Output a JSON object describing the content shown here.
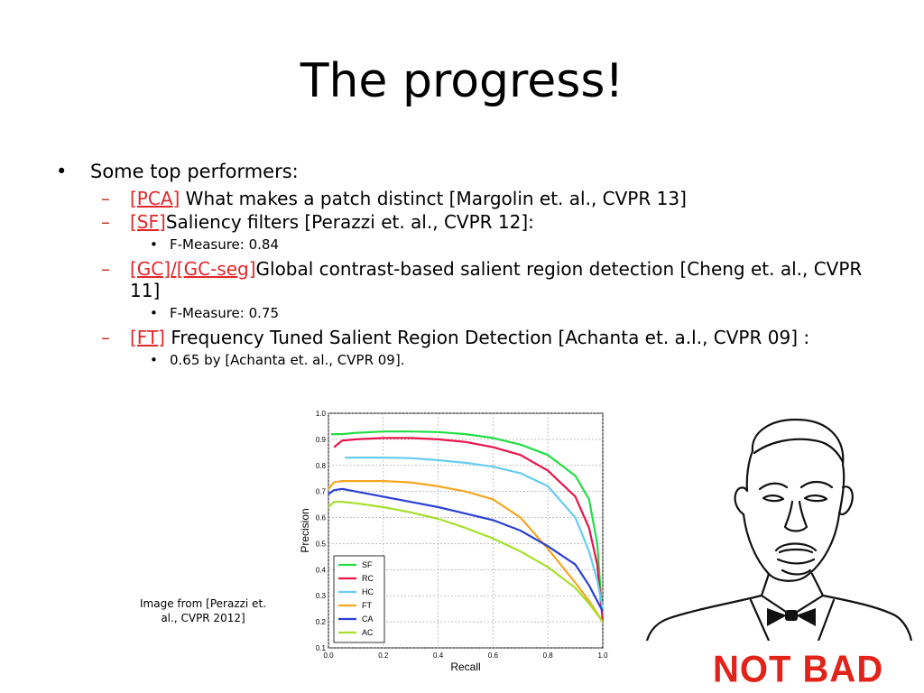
{
  "slide": {
    "title": "The progress!",
    "bullets": {
      "top": "Some top performers:",
      "items": [
        {
          "tag": "[PCA]",
          "text": " What makes a patch distinct [Margolin et. al., CVPR 13]"
        },
        {
          "tag": "[SF]",
          "text": "Saliency filters [Perazzi et. al., CVPR 12]:",
          "sub": "F-Measure: 0.84"
        },
        {
          "tag": "[GC]/[GC-seg]",
          "text": "Global contrast-based salient region detection [Cheng et. al., CVPR 11]",
          "sub": "F-Measure: 0.75"
        },
        {
          "tag": "[FT]",
          "text": " Frequency Tuned Salient Region Detection [Achanta et. a.l., CVPR 09] :",
          "sub": "0.65 by [Achanta et. al., CVPR 09]."
        }
      ]
    },
    "caption": "Image from [Perazzi et. al., CVPR 2012]",
    "meme_text": "NOT BAD"
  },
  "chart_data": {
    "type": "line",
    "xlabel": "Recall",
    "ylabel": "Precision",
    "xlim": [
      0.0,
      1.0
    ],
    "ylim": [
      0.1,
      1.0
    ],
    "xticks": [
      "0.0",
      "0.2",
      "0.4",
      "0.6",
      "0.8",
      "1.0"
    ],
    "yticks": [
      "0.1",
      "0.2",
      "0.3",
      "0.4",
      "0.5",
      "0.6",
      "0.7",
      "0.8",
      "0.9",
      "1.0"
    ],
    "grid": true,
    "legend_position": "lower-left",
    "series": [
      {
        "name": "SF",
        "color": "#22dd44",
        "x": [
          0.01,
          0.05,
          0.1,
          0.2,
          0.3,
          0.4,
          0.5,
          0.6,
          0.7,
          0.8,
          0.9,
          0.95,
          0.98,
          1.0
        ],
        "y": [
          0.92,
          0.92,
          0.925,
          0.93,
          0.93,
          0.928,
          0.92,
          0.905,
          0.88,
          0.84,
          0.76,
          0.67,
          0.5,
          0.2
        ]
      },
      {
        "name": "RC",
        "color": "#e8144c",
        "x": [
          0.02,
          0.05,
          0.1,
          0.2,
          0.3,
          0.4,
          0.5,
          0.6,
          0.7,
          0.8,
          0.9,
          0.95,
          0.98,
          1.0
        ],
        "y": [
          0.87,
          0.895,
          0.9,
          0.905,
          0.905,
          0.9,
          0.89,
          0.87,
          0.84,
          0.78,
          0.68,
          0.56,
          0.42,
          0.2
        ]
      },
      {
        "name": "HC",
        "color": "#66ccf0",
        "x": [
          0.06,
          0.1,
          0.2,
          0.3,
          0.4,
          0.5,
          0.6,
          0.7,
          0.8,
          0.9,
          0.95,
          0.98,
          1.0
        ],
        "y": [
          0.83,
          0.83,
          0.83,
          0.828,
          0.82,
          0.81,
          0.795,
          0.77,
          0.72,
          0.6,
          0.47,
          0.36,
          0.25
        ]
      },
      {
        "name": "FT",
        "color": "#f5a623",
        "x": [
          0.0,
          0.02,
          0.05,
          0.1,
          0.2,
          0.3,
          0.4,
          0.5,
          0.6,
          0.7,
          0.8,
          0.9,
          0.95,
          1.0
        ],
        "y": [
          0.71,
          0.735,
          0.74,
          0.74,
          0.74,
          0.735,
          0.72,
          0.7,
          0.67,
          0.6,
          0.48,
          0.35,
          0.28,
          0.2
        ]
      },
      {
        "name": "CA",
        "color": "#2a3fd4",
        "x": [
          0.0,
          0.02,
          0.05,
          0.1,
          0.2,
          0.3,
          0.4,
          0.5,
          0.6,
          0.7,
          0.8,
          0.9,
          0.95,
          1.0
        ],
        "y": [
          0.69,
          0.705,
          0.71,
          0.7,
          0.68,
          0.66,
          0.64,
          0.615,
          0.59,
          0.55,
          0.49,
          0.42,
          0.34,
          0.24
        ]
      },
      {
        "name": "AC",
        "color": "#a6e02a",
        "x": [
          0.0,
          0.02,
          0.05,
          0.1,
          0.2,
          0.3,
          0.4,
          0.5,
          0.6,
          0.7,
          0.8,
          0.9,
          0.95,
          1.0
        ],
        "y": [
          0.64,
          0.66,
          0.66,
          0.655,
          0.64,
          0.62,
          0.595,
          0.56,
          0.52,
          0.47,
          0.41,
          0.33,
          0.27,
          0.2
        ]
      }
    ]
  }
}
